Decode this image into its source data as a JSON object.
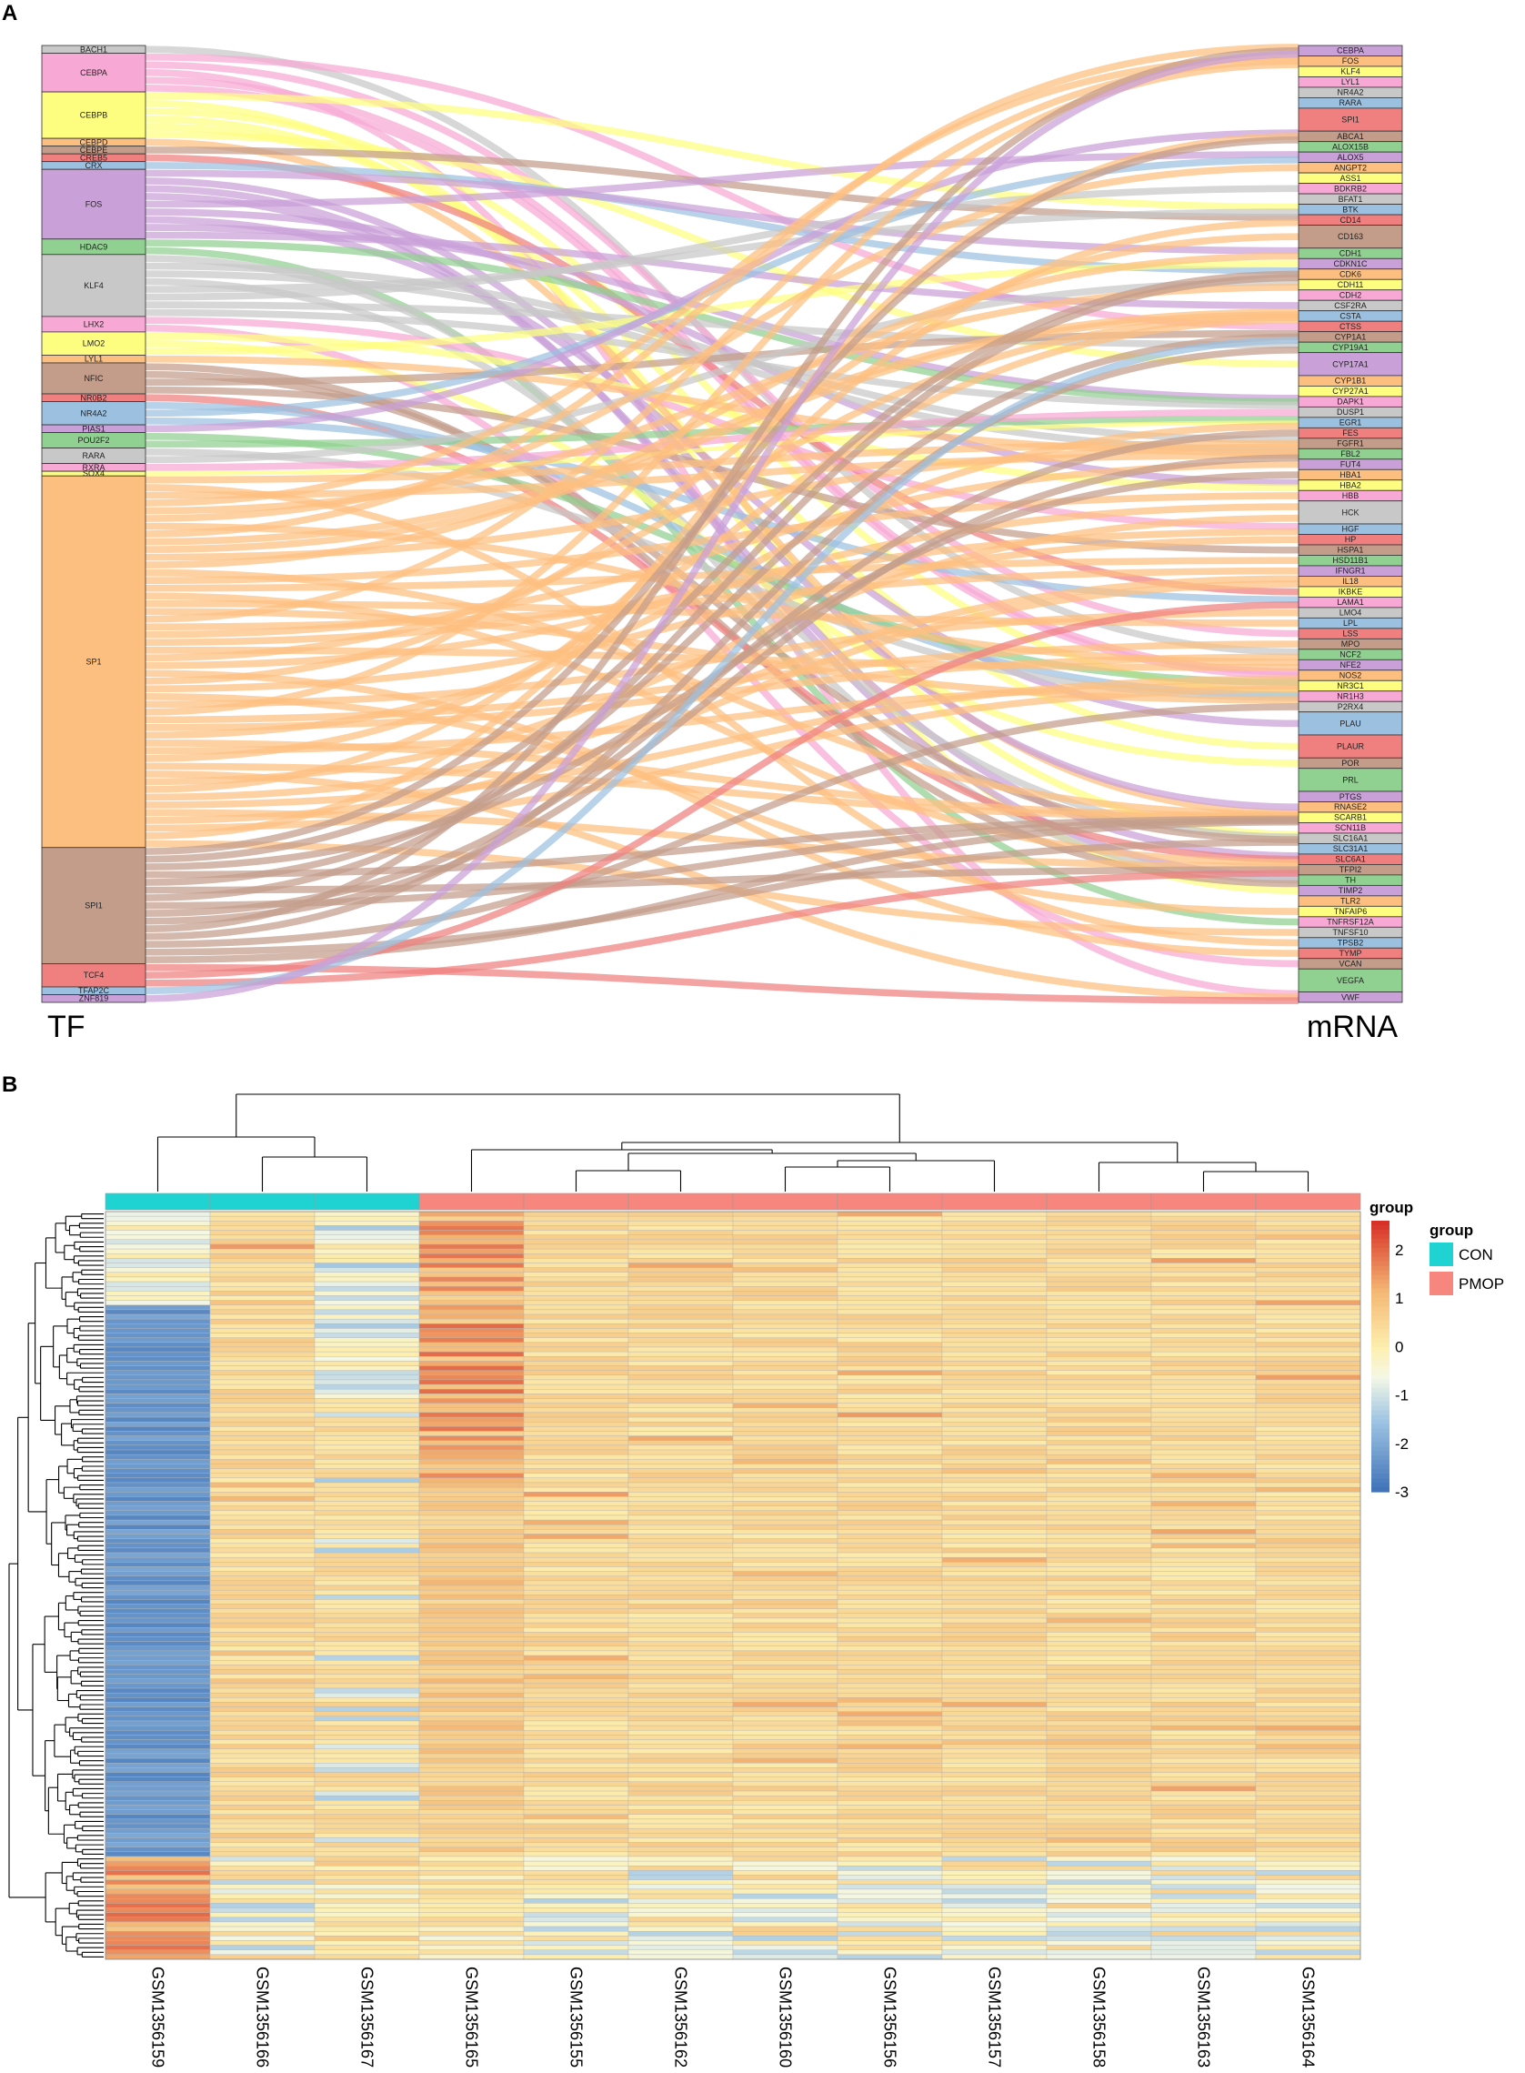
{
  "chart_data": [
    {
      "panel": "A",
      "type": "sankey",
      "left_axis_title": "TF",
      "right_axis_title": "mRNA",
      "tf_nodes": [
        {
          "name": "BACH1",
          "weight": 1,
          "color": "#c8c8c8"
        },
        {
          "name": "CEBPA",
          "weight": 5,
          "color": "#f7a8d4"
        },
        {
          "name": "CEBPB",
          "weight": 6,
          "color": "#fdfd80"
        },
        {
          "name": "CEBPD",
          "weight": 1,
          "color": "#fdbf7f"
        },
        {
          "name": "CEBPE",
          "weight": 1,
          "color": "#c39c8a"
        },
        {
          "name": "CREB5",
          "weight": 1,
          "color": "#f08080"
        },
        {
          "name": "CRX",
          "weight": 1,
          "color": "#9cc0e0"
        },
        {
          "name": "FOS",
          "weight": 9,
          "color": "#c9a0d8"
        },
        {
          "name": "HDAC9",
          "weight": 2,
          "color": "#90d090"
        },
        {
          "name": "KLF4",
          "weight": 8,
          "color": "#c8c8c8"
        },
        {
          "name": "LHX2",
          "weight": 2,
          "color": "#f7a8d4"
        },
        {
          "name": "LMO2",
          "weight": 3,
          "color": "#fdfd80"
        },
        {
          "name": "LYL1",
          "weight": 1,
          "color": "#fdbf7f"
        },
        {
          "name": "NFIC",
          "weight": 4,
          "color": "#c39c8a"
        },
        {
          "name": "NR0B2",
          "weight": 1,
          "color": "#f08080"
        },
        {
          "name": "NR4A2",
          "weight": 3,
          "color": "#9cc0e0"
        },
        {
          "name": "PIAS1",
          "weight": 1,
          "color": "#c9a0d8"
        },
        {
          "name": "POU2F2",
          "weight": 2,
          "color": "#90d090"
        },
        {
          "name": "RARA",
          "weight": 2,
          "color": "#c8c8c8"
        },
        {
          "name": "RXRA",
          "weight": 1,
          "color": "#f7a8d4"
        },
        {
          "name": "SOX4",
          "weight": 0.6,
          "color": "#fdfd80"
        },
        {
          "name": "SP1",
          "weight": 48,
          "color": "#fdbf7f"
        },
        {
          "name": "SPI1",
          "weight": 15,
          "color": "#c39c8a"
        },
        {
          "name": "TCF4",
          "weight": 3,
          "color": "#f08080"
        },
        {
          "name": "TFAP2C",
          "weight": 1,
          "color": "#9cc0e0"
        },
        {
          "name": "ZNF819",
          "weight": 1,
          "color": "#c9a0d8"
        }
      ],
      "mrna_nodes": [
        "CEBPA",
        "FOS",
        "KLF4",
        "LYL1",
        "NR4A2",
        "RARA",
        "SPI1",
        "ABCA1",
        "ALOX15B",
        "ALOX5",
        "ANGPT2",
        "ASS1",
        "BDKRB2",
        "BFAT1",
        "BTK",
        "CD14",
        "CD163",
        "CDH1",
        "CDKN1C",
        "CDK6",
        "CDH11",
        "CDH2",
        "CSF2RA",
        "CSTA",
        "CTSS",
        "CYP1A1",
        "CYP19A1",
        "CYP17A1",
        "CYP1B1",
        "CYP27A1",
        "DAPK1",
        "DUSP1",
        "EGR1",
        "FES",
        "FGFR1",
        "FBL2",
        "FUT4",
        "HBA1",
        "HBA2",
        "HBB",
        "HCK",
        "HGF",
        "HP",
        "HSPA1",
        "HSD11B1",
        "IFNGR1",
        "IL18",
        "IKBKE",
        "LAMA1",
        "LMO4",
        "LPL",
        "LSS",
        "MPO",
        "NCF2",
        "NFE2",
        "NOS2",
        "NR3C1",
        "NR1H3",
        "P2RX4",
        "PLAU",
        "PLAUR",
        "POR",
        "PRL",
        "PTGS",
        "RNASE2",
        "SCARB1",
        "SCN11B",
        "SLC16A1",
        "SLC31A1",
        "SLC6A1",
        "TFPI2",
        "TH",
        "TIMP2",
        "TLR2",
        "TNFAIP6",
        "TNFRSF12A",
        "TNFSF10",
        "TPSB2",
        "TYMP",
        "VCAN",
        "VEGFA",
        "VWF"
      ],
      "mrna_large": [
        "SPI1",
        "CD163",
        "CYP17A1",
        "HCK",
        "PLAU",
        "PLAUR",
        "PRL",
        "VEGFA"
      ]
    },
    {
      "panel": "B",
      "type": "heatmap",
      "samples": [
        "GSM1356159",
        "GSM1356166",
        "GSM1356167",
        "GSM1356165",
        "GSM1356155",
        "GSM1356162",
        "GSM1356160",
        "GSM1356156",
        "GSM1356157",
        "GSM1356158",
        "GSM1356163",
        "GSM1356164"
      ],
      "groups": [
        "CON",
        "CON",
        "CON",
        "PMOP",
        "PMOP",
        "PMOP",
        "PMOP",
        "PMOP",
        "PMOP",
        "PMOP",
        "PMOP",
        "PMOP"
      ],
      "n_rows": 160,
      "colorbar_title": "group",
      "colorbar_ticks": [
        2,
        1,
        0,
        -1,
        -2,
        -3
      ],
      "colorbar_tick_labels": [
        "2",
        "1",
        "0",
        "-1",
        "-2",
        "-3"
      ],
      "zlim": [
        -3,
        2.6
      ],
      "legend": {
        "title": "group",
        "items": [
          {
            "label": "CON",
            "color": "#1fd3d3"
          },
          {
            "label": "PMOP",
            "color": "#f7877e"
          }
        ]
      }
    }
  ],
  "labels": {
    "panel_a": "A",
    "panel_b": "B"
  }
}
